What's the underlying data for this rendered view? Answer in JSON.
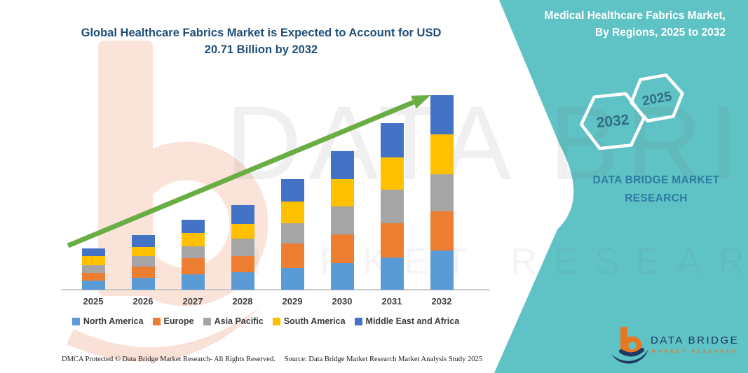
{
  "page": {
    "background": "#FFFFFF",
    "accent_teal": "#5FC2C4"
  },
  "title": {
    "line1": "Global Healthcare Fabrics Market is Expected to Account for USD",
    "line2": "20.71 Billion by 2032"
  },
  "side_panel": {
    "heading_line1": "Medical Healthcare Fabrics Market,",
    "heading_line2": "By Regions, 2025 to 2032",
    "hexagon_back_label": "2032",
    "hexagon_front_label": "2025",
    "brand_line1": "DATA BRIDGE MARKET",
    "brand_line2": "RESEARCH"
  },
  "watermark": {
    "line1": "DATA BRIDGE",
    "line2": "MARKET RESEARCH"
  },
  "chart_data": {
    "type": "bar",
    "stacked": true,
    "title": "Global Healthcare Fabrics Market is Expected to Account for USD 20.71 Billion by 2032",
    "unit": "USD Billion",
    "categories": [
      "2025",
      "2026",
      "2027",
      "2028",
      "2029",
      "2030",
      "2031",
      "2032"
    ],
    "series": [
      {
        "name": "North America",
        "color": "#5B9BD5",
        "values": [
          1.0,
          1.25,
          1.63,
          1.85,
          2.3,
          2.85,
          3.43,
          4.18
        ]
      },
      {
        "name": "Europe",
        "color": "#ED7D31",
        "values": [
          0.8,
          1.22,
          1.7,
          1.73,
          2.6,
          3.0,
          3.65,
          4.18
        ]
      },
      {
        "name": "Asia Pacific",
        "color": "#A5A5A5",
        "values": [
          0.8,
          1.1,
          1.27,
          1.85,
          2.17,
          3.05,
          3.58,
          3.96
        ]
      },
      {
        "name": "South America",
        "color": "#FFC000",
        "values": [
          0.95,
          1.0,
          1.45,
          1.58,
          2.31,
          2.9,
          3.45,
          4.19
        ]
      },
      {
        "name": "Middle East and Africa",
        "color": "#4472C4",
        "values": [
          0.85,
          1.24,
          1.4,
          2.0,
          2.39,
          2.95,
          3.62,
          4.2
        ]
      }
    ],
    "totals": [
      4.4,
      5.81,
      7.45,
      9.01,
      11.77,
      14.75,
      17.73,
      20.71
    ],
    "ylim": [
      0,
      22
    ],
    "value_axis_visible": false,
    "grid": false,
    "legend_position": "bottom",
    "annotations": [
      "green upward trend arrow from 2025 toward 2032"
    ]
  },
  "footer": {
    "left": "DMCA Protected © Data Bridge Market Research-  All Rights Reserved.",
    "right": "Source: Data Bridge Market Research  Market Analysis Study 2025"
  },
  "logo": {
    "name": "DATA BRIDGE",
    "subtitle": "MARKET RESEARCH"
  }
}
